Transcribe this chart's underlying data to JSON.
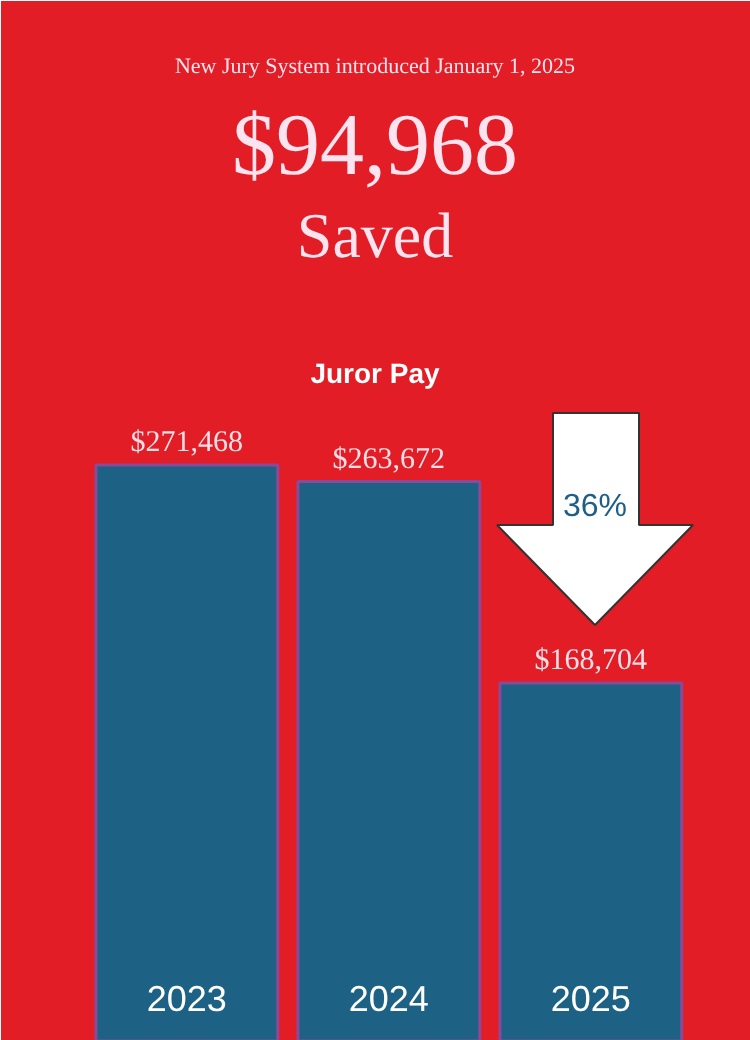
{
  "chart_data": {
    "type": "bar",
    "title": "Juror Pay",
    "categories": [
      "2023",
      "2024",
      "2025"
    ],
    "values": [
      271468,
      263672,
      168704
    ],
    "color": "#1d6184",
    "value_labels": [
      "$271,468",
      "$263,672",
      "$168,704"
    ],
    "annotations": [
      "New Jury System introduced January 1, 2025",
      "$94,968",
      "Saved",
      "36%"
    ]
  }
}
